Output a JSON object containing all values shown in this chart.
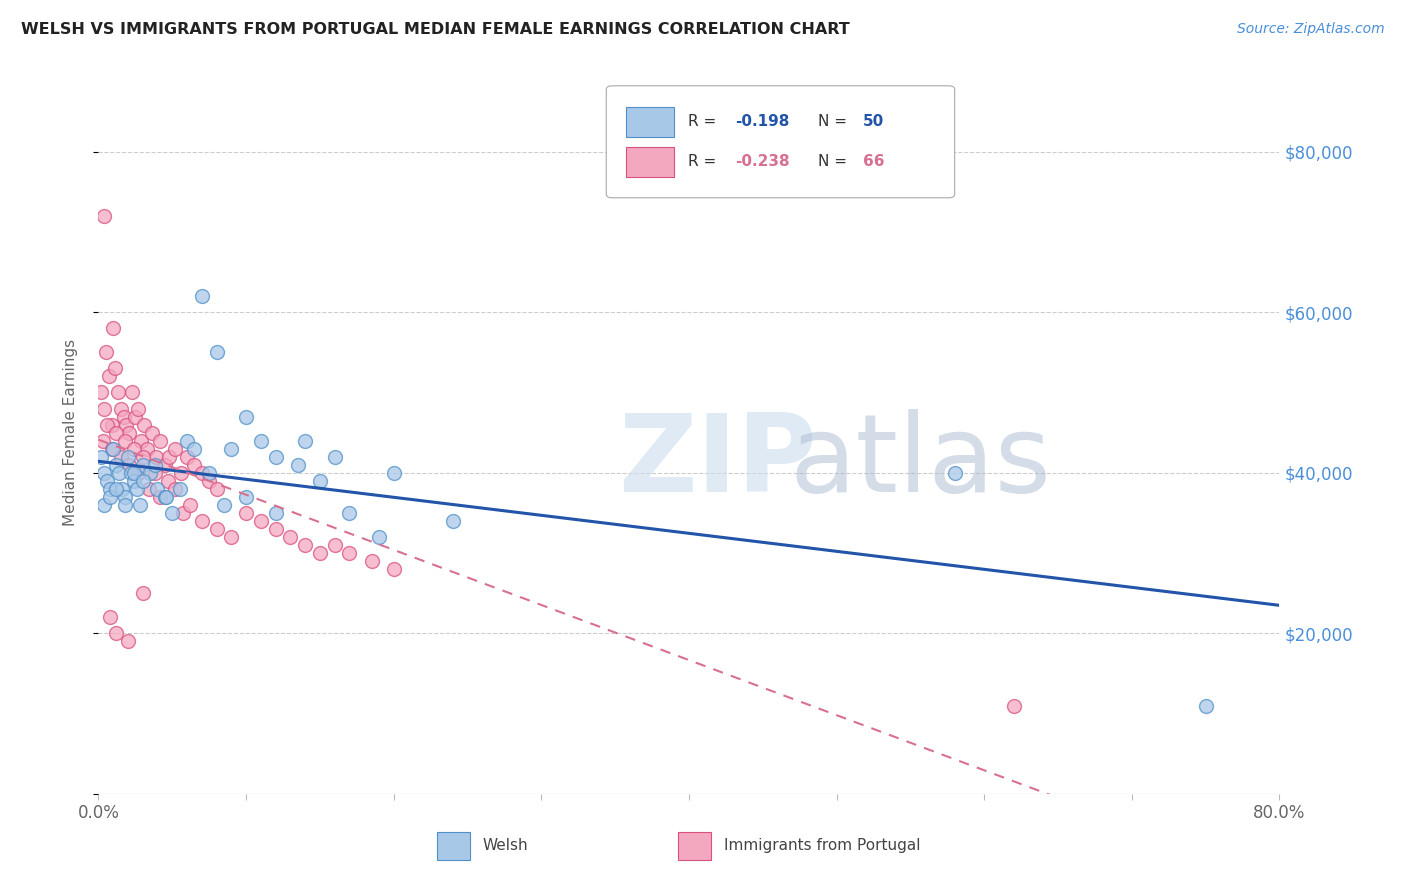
{
  "title": "WELSH VS IMMIGRANTS FROM PORTUGAL MEDIAN FEMALE EARNINGS CORRELATION CHART",
  "source": "Source: ZipAtlas.com",
  "ylabel": "Median Female Earnings",
  "xlim": [
    0.0,
    0.8
  ],
  "ylim": [
    0,
    90000
  ],
  "yticks": [
    0,
    20000,
    40000,
    60000,
    80000
  ],
  "xticks": [
    0.0,
    0.1,
    0.2,
    0.3,
    0.4,
    0.5,
    0.6,
    0.7,
    0.8
  ],
  "welsh_color": "#a8c8e8",
  "portugal_color": "#f4a8c0",
  "welsh_edge_color": "#5090c8",
  "portugal_edge_color": "#d85080",
  "trend_welsh_color": "#2255aa",
  "trend_portugal_color": "#d87090",
  "legend_welsh_R": "-0.198",
  "legend_welsh_N": "50",
  "legend_portugal_R": "-0.238",
  "legend_portugal_N": "66",
  "welsh_x": [
    0.002,
    0.004,
    0.006,
    0.008,
    0.01,
    0.012,
    0.014,
    0.016,
    0.018,
    0.02,
    0.022,
    0.024,
    0.026,
    0.028,
    0.03,
    0.035,
    0.04,
    0.045,
    0.05,
    0.06,
    0.07,
    0.08,
    0.09,
    0.1,
    0.11,
    0.12,
    0.135,
    0.15,
    0.17,
    0.19,
    0.004,
    0.008,
    0.012,
    0.018,
    0.024,
    0.03,
    0.038,
    0.046,
    0.055,
    0.065,
    0.075,
    0.085,
    0.1,
    0.12,
    0.14,
    0.16,
    0.2,
    0.24,
    0.58,
    0.75
  ],
  "welsh_y": [
    42000,
    40000,
    39000,
    38000,
    43000,
    41000,
    40000,
    38000,
    37000,
    42000,
    40000,
    39000,
    38000,
    36000,
    41000,
    40000,
    38000,
    37000,
    35000,
    44000,
    62000,
    55000,
    43000,
    47000,
    44000,
    42000,
    41000,
    39000,
    35000,
    32000,
    36000,
    37000,
    38000,
    36000,
    40000,
    39000,
    41000,
    37000,
    38000,
    43000,
    40000,
    36000,
    37000,
    35000,
    44000,
    42000,
    40000,
    34000,
    40000,
    11000
  ],
  "portugal_x": [
    0.002,
    0.004,
    0.005,
    0.007,
    0.009,
    0.01,
    0.011,
    0.013,
    0.015,
    0.017,
    0.019,
    0.021,
    0.023,
    0.025,
    0.027,
    0.029,
    0.031,
    0.033,
    0.036,
    0.039,
    0.042,
    0.045,
    0.048,
    0.052,
    0.056,
    0.06,
    0.065,
    0.07,
    0.075,
    0.08,
    0.003,
    0.006,
    0.009,
    0.012,
    0.015,
    0.018,
    0.021,
    0.024,
    0.027,
    0.03,
    0.034,
    0.038,
    0.042,
    0.047,
    0.052,
    0.057,
    0.062,
    0.07,
    0.08,
    0.09,
    0.1,
    0.11,
    0.12,
    0.13,
    0.14,
    0.15,
    0.16,
    0.17,
    0.185,
    0.2,
    0.004,
    0.008,
    0.012,
    0.02,
    0.03,
    0.62
  ],
  "portugal_y": [
    50000,
    48000,
    55000,
    52000,
    46000,
    58000,
    53000,
    50000,
    48000,
    47000,
    46000,
    45000,
    50000,
    47000,
    48000,
    44000,
    46000,
    43000,
    45000,
    42000,
    44000,
    41000,
    42000,
    43000,
    40000,
    42000,
    41000,
    40000,
    39000,
    38000,
    44000,
    46000,
    43000,
    45000,
    42000,
    44000,
    41000,
    43000,
    40000,
    42000,
    38000,
    40000,
    37000,
    39000,
    38000,
    35000,
    36000,
    34000,
    33000,
    32000,
    35000,
    34000,
    33000,
    32000,
    31000,
    30000,
    31000,
    30000,
    29000,
    28000,
    72000,
    22000,
    20000,
    19000,
    25000,
    11000
  ]
}
